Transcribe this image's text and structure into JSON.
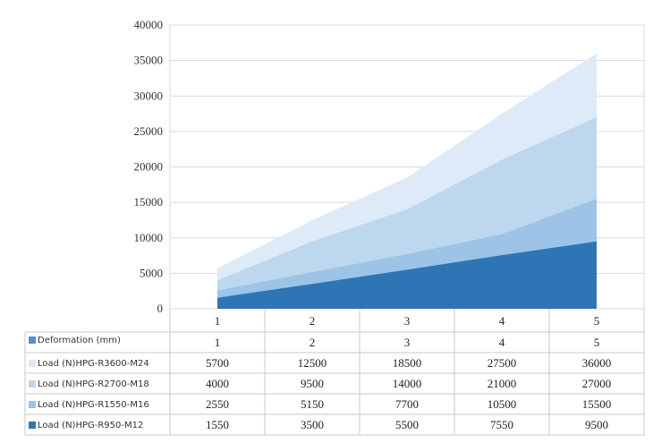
{
  "chart_data": {
    "type": "area",
    "stacked": false,
    "title": "",
    "xlabel": "",
    "ylabel": "",
    "x": [
      "1",
      "2",
      "3",
      "4",
      "5"
    ],
    "ylim": [
      0,
      40000
    ],
    "yticks": [
      0,
      5000,
      10000,
      15000,
      20000,
      25000,
      30000,
      35000,
      40000
    ],
    "grid": true,
    "legend_placement": "data-table-left",
    "data_table": {
      "header_row": [
        "1",
        "2",
        "3",
        "4",
        "5"
      ],
      "rows": [
        {
          "name": "Deformation (mm)",
          "color": "#5b8ec9",
          "values": [
            1,
            2,
            3,
            4,
            5
          ]
        },
        {
          "name": "Load (N)HPG-R3600-M24",
          "color": "#deeaf7",
          "values": [
            5700,
            12500,
            18500,
            27500,
            36000
          ]
        },
        {
          "name": "Load (N)HPG-R2700-M18",
          "color": "#bdd7ee",
          "values": [
            4000,
            9500,
            14000,
            21000,
            27000
          ]
        },
        {
          "name": "Load (N)HPG-R1550-M16",
          "color": "#9dc3e6",
          "values": [
            2550,
            5150,
            7700,
            10500,
            15500
          ]
        },
        {
          "name": "Load (N)HPG-R950-M12",
          "color": "#2e75b6",
          "values": [
            1550,
            3500,
            5500,
            7550,
            9500
          ]
        }
      ]
    },
    "series": [
      {
        "name": "Load (N)HPG-R3600-M24",
        "color": "#deeaf7",
        "values": [
          5700,
          12500,
          18500,
          27500,
          36000
        ]
      },
      {
        "name": "Load (N)HPG-R2700-M18",
        "color": "#bdd7ee",
        "values": [
          4000,
          9500,
          14000,
          21000,
          27000
        ]
      },
      {
        "name": "Load (N)HPG-R1550-M16",
        "color": "#9dc3e6",
        "values": [
          2550,
          5150,
          7700,
          10500,
          15500
        ]
      },
      {
        "name": "Load (N)HPG-R950-M12",
        "color": "#2e75b6",
        "values": [
          1550,
          3500,
          5500,
          7550,
          9500
        ]
      }
    ]
  }
}
